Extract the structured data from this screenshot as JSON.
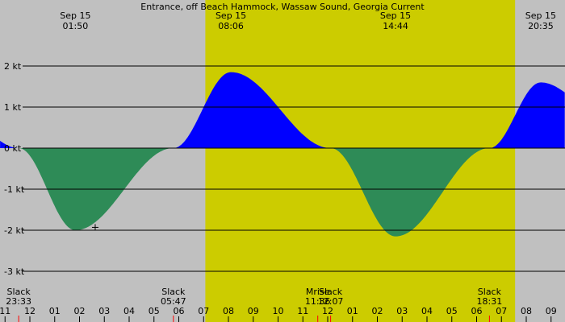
{
  "chart_data": {
    "type": "area",
    "title": "Entrance, off Beach Hammock, Wassaw Sound, Georgia Current",
    "unit": "kt",
    "y_ticks": [
      {
        "value": 2,
        "label": "2 kt"
      },
      {
        "value": 1,
        "label": "1 kt"
      },
      {
        "value": 0,
        "label": "0 kt"
      },
      {
        "value": -1,
        "label": "-1 kt"
      },
      {
        "value": -2,
        "label": "-2 kt"
      },
      {
        "value": -3,
        "label": "-3 kt"
      }
    ],
    "ylim": [
      -3.2,
      2.6
    ],
    "x_range_hours": [
      -12.9,
      10.3
    ],
    "daylight_hours": [
      7.07,
      19.55
    ],
    "extrema_labels": [
      {
        "hour": 1.833,
        "date": "Sep 15",
        "time": "01:50",
        "value": -2.0
      },
      {
        "hour": 8.1,
        "date": "Sep 15",
        "time": "08:06",
        "value": 1.85
      },
      {
        "hour": 14.733,
        "date": "Sep 15",
        "time": "14:44",
        "value": -2.15
      },
      {
        "hour": 20.583,
        "date": "Sep 15",
        "time": "20:35",
        "value": 1.6
      }
    ],
    "events": [
      {
        "hour": -0.45,
        "label": "Slack",
        "time": "23:33"
      },
      {
        "hour": 5.783,
        "label": "Slack",
        "time": "05:47"
      },
      {
        "hour": 11.6,
        "label": "Mrise",
        "time": "11:36"
      },
      {
        "hour": 12.117,
        "label": "Slack",
        "time": "12:07"
      },
      {
        "hour": 18.517,
        "label": "Slack",
        "time": "18:31"
      }
    ],
    "hour_labels": [
      "11",
      "12",
      "01",
      "02",
      "03",
      "04",
      "05",
      "06",
      "07",
      "08",
      "09",
      "10",
      "11",
      "12",
      "01",
      "02",
      "03",
      "04",
      "05",
      "06",
      "07",
      "08",
      "09"
    ],
    "first_hour_label_value": 23,
    "colors": {
      "background": "#c0c0c0",
      "daylight": "#cccc00",
      "flood": "#0000ff",
      "ebb": "#2e8b57",
      "gridline": "#000000",
      "tick_marker": "#ff0000"
    }
  }
}
